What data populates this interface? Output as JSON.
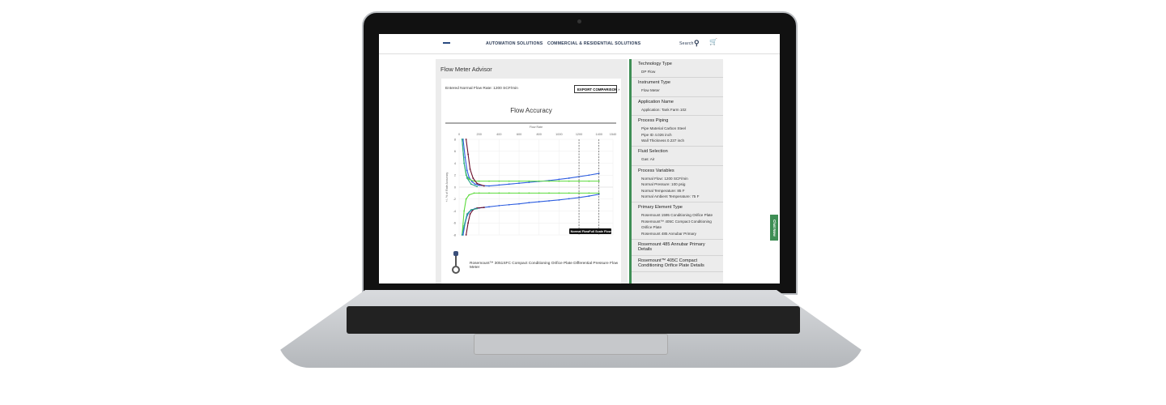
{
  "nav": {
    "items": [
      "AUTOMATION SOLUTIONS",
      "COMMERCIAL & RESIDENTIAL SOLUTIONS"
    ],
    "search_label": "Search",
    "icons": [
      "logo",
      "search-icon",
      "cart-icon"
    ]
  },
  "main": {
    "title": "Flow Meter Advisor",
    "entered_flow": "Entered Normal Flow Rate: 1200 SCF/min",
    "export_button": "EXPORT COMPARISON",
    "product": "Rosemount™ 3051SFC Compact Conditioning Orifice Plate Differential Pressure Flow Meter"
  },
  "chart_data": {
    "type": "line",
    "title": "Flow Accuracy",
    "xlabel": "Flow Rate",
    "ylabel": "+/- % of Rate Accuracy",
    "xlim": [
      0,
      1540
    ],
    "ylim": [
      -8,
      8
    ],
    "x_ticks": [
      "0",
      "200",
      "400",
      "600",
      "800",
      "1000",
      "1200",
      "1400",
      "1540"
    ],
    "y_ticks": [
      "8",
      "6",
      "4",
      "2",
      "0",
      "-2",
      "-4",
      "-6",
      "-8"
    ],
    "markers": [
      {
        "x": 1200,
        "label": "Normal Flow"
      },
      {
        "x": 1400,
        "label": "Full Scale Flow"
      }
    ],
    "series": [
      {
        "color": "#2f5fe0",
        "x": [
          40,
          60,
          80,
          100,
          130,
          160,
          200,
          300,
          400,
          500,
          600,
          700,
          800,
          900,
          1000,
          1100,
          1200,
          1300,
          1400
        ],
        "y": [
          8,
          5,
          2.8,
          1.6,
          0.9,
          0.5,
          0.3,
          0.2,
          0.35,
          0.5,
          0.65,
          0.8,
          0.95,
          1.1,
          1.3,
          1.5,
          1.75,
          2.0,
          2.3
        ]
      },
      {
        "color": "#2f5fe0",
        "x": [
          40,
          60,
          80,
          100,
          130,
          160,
          200,
          300,
          400,
          500,
          600,
          700,
          800,
          900,
          1000,
          1100,
          1200,
          1300,
          1400
        ],
        "y": [
          -8,
          -6,
          -4.8,
          -4.2,
          -3.8,
          -3.6,
          -3.5,
          -3.3,
          -3.1,
          -2.95,
          -2.8,
          -2.6,
          -2.45,
          -2.3,
          -2.15,
          -1.95,
          -1.75,
          -1.5,
          -1.2
        ]
      },
      {
        "color": "#5cdb3c",
        "x": [
          30,
          50,
          70,
          100,
          150,
          200,
          300,
          400,
          500,
          600,
          700,
          800,
          900,
          1000,
          1100,
          1200,
          1300,
          1400
        ],
        "y": [
          8,
          4,
          2,
          1.3,
          1,
          1,
          1,
          1,
          1,
          1,
          1,
          1,
          1,
          1,
          1,
          1,
          1,
          1
        ]
      },
      {
        "color": "#5cdb3c",
        "x": [
          30,
          50,
          70,
          100,
          150,
          200,
          300,
          400,
          500,
          600,
          700,
          800,
          900,
          1000,
          1100,
          1200,
          1300,
          1400
        ],
        "y": [
          -8,
          -4,
          -2,
          -1.3,
          -1,
          -1,
          -1,
          -1,
          -1,
          -1,
          -1,
          -1,
          -1,
          -1,
          -1,
          -1,
          -1,
          -1
        ]
      },
      {
        "color": "#6b0f2a",
        "x": [
          70,
          90,
          110,
          140,
          180,
          250
        ],
        "y": [
          8,
          5.5,
          3,
          1.5,
          0.6,
          0.2
        ]
      },
      {
        "color": "#6b0f2a",
        "x": [
          70,
          90,
          110,
          140,
          180,
          250
        ],
        "y": [
          -8,
          -6,
          -4.5,
          -3.8,
          -3.5,
          -3.4
        ]
      },
      {
        "color": "#2aa58a",
        "x": [
          30,
          50,
          80,
          120,
          180
        ],
        "y": [
          8,
          4,
          1.5,
          0.5,
          0.1
        ]
      },
      {
        "color": "#2aa58a",
        "x": [
          30,
          50,
          80,
          120,
          180
        ],
        "y": [
          -8,
          -6.5,
          -4.5,
          -3.8,
          -3.6
        ]
      }
    ]
  },
  "sidebar": [
    {
      "h": "Technology Type",
      "v": [
        "DP Flow"
      ]
    },
    {
      "h": "Instrument Type",
      "v": [
        "Flow Meter"
      ]
    },
    {
      "h": "Application Name",
      "v": [
        "Application: Tank Farm 102"
      ]
    },
    {
      "h": "Process Piping",
      "v": [
        "Pipe Material Carbon Steel",
        "Pipe ID 4.026 inch",
        "Wall Thickness 0.237 inch"
      ]
    },
    {
      "h": "Fluid Selection",
      "v": [
        "Gas: Air"
      ]
    },
    {
      "h": "Process Variables",
      "v": [
        "Normal Flow: 1200 SCF/min",
        "Normal Pressure: 100 psig",
        "Normal Temperature: 85 F",
        "Normal Ambient Temperature: 75 F"
      ]
    },
    {
      "h": "Primary Element Type",
      "v": [
        "Rosemount 1595 Conditioning Orifice Plate",
        "Rosemount™ 405C Compact Conditioning Orifice Plate",
        "Rosemount 485 Annubar Primary"
      ]
    },
    {
      "h": "Rosemount 485 Annubar Primary Details",
      "v": []
    },
    {
      "h": "Rosemount™ 405C Compact Conditioning Orifice Plate Details",
      "v": []
    }
  ],
  "chat_label": "Chat Now"
}
